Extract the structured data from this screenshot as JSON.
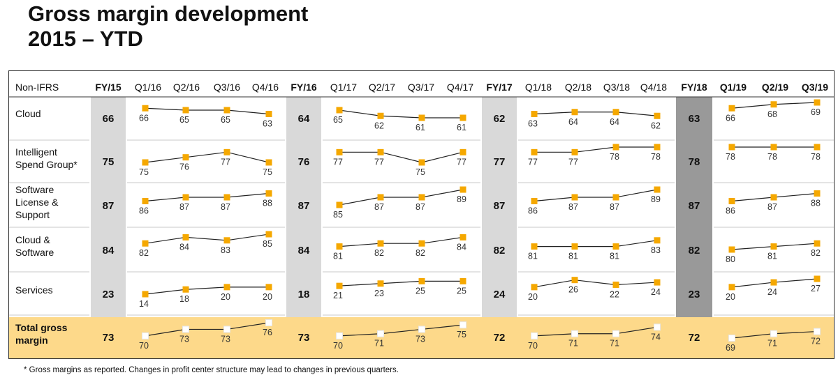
{
  "title_line1": "Gross margin development",
  "title_line2": "2015 – YTD",
  "footnote": "* Gross margins as reported. Changes in profit center structure may lead to changes in previous quarters.",
  "colors": {
    "accent": "#f5a800",
    "fy_band": "#d9d9d9",
    "fy_band_dark": "#999999",
    "total_band": "#fdd98a",
    "total_marker": "#ffffff"
  },
  "chart_data": {
    "type": "table",
    "corner_label": "Non-IFRS",
    "groups": [
      {
        "fy": "FY/15",
        "quarters": [
          "Q1/16",
          "Q2/16",
          "Q3/16",
          "Q4/16"
        ],
        "quarters_bold": false
      },
      {
        "fy": "FY/16",
        "quarters": [
          "Q1/17",
          "Q2/17",
          "Q3/17",
          "Q4/17"
        ],
        "quarters_bold": false
      },
      {
        "fy": "FY/17",
        "quarters": [
          "Q1/18",
          "Q2/18",
          "Q3/18",
          "Q4/18"
        ],
        "quarters_bold": false
      },
      {
        "fy": "FY/18",
        "quarters": [
          "Q1/19",
          "Q2/19",
          "Q3/19"
        ],
        "quarters_bold": true
      }
    ],
    "rows": [
      {
        "name": "Cloud",
        "label_lines": [
          "Cloud"
        ],
        "fy": [
          66,
          64,
          62,
          63
        ],
        "quarters": [
          [
            66,
            65,
            65,
            63
          ],
          [
            65,
            62,
            61,
            61
          ],
          [
            63,
            64,
            64,
            62
          ],
          [
            66,
            68,
            69
          ]
        ]
      },
      {
        "name": "Intelligent Spend Group*",
        "label_lines": [
          "Intelligent",
          "Spend Group*"
        ],
        "fy": [
          75,
          76,
          77,
          78
        ],
        "quarters": [
          [
            75,
            76,
            77,
            75
          ],
          [
            77,
            77,
            75,
            77
          ],
          [
            77,
            77,
            78,
            78
          ],
          [
            78,
            78,
            78
          ]
        ]
      },
      {
        "name": "Software License & Support",
        "label_lines": [
          "Software",
          "License &",
          "Support"
        ],
        "fy": [
          87,
          87,
          87,
          87
        ],
        "quarters": [
          [
            86,
            87,
            87,
            88
          ],
          [
            85,
            87,
            87,
            89
          ],
          [
            86,
            87,
            87,
            89
          ],
          [
            86,
            87,
            88
          ]
        ]
      },
      {
        "name": "Cloud & Software",
        "label_lines": [
          "Cloud &",
          "Software"
        ],
        "fy": [
          84,
          84,
          82,
          82
        ],
        "quarters": [
          [
            82,
            84,
            83,
            85
          ],
          [
            81,
            82,
            82,
            84
          ],
          [
            81,
            81,
            81,
            83
          ],
          [
            80,
            81,
            82
          ]
        ]
      },
      {
        "name": "Services",
        "label_lines": [
          "Services"
        ],
        "fy": [
          23,
          18,
          24,
          23
        ],
        "quarters": [
          [
            14,
            18,
            20,
            20
          ],
          [
            21,
            23,
            25,
            25
          ],
          [
            20,
            26,
            22,
            24
          ],
          [
            20,
            24,
            27
          ]
        ]
      },
      {
        "name": "Total gross margin",
        "label_lines": [
          "Total gross",
          "margin"
        ],
        "fy": [
          73,
          73,
          72,
          72
        ],
        "quarters": [
          [
            70,
            73,
            73,
            76
          ],
          [
            70,
            71,
            73,
            75
          ],
          [
            70,
            71,
            71,
            74
          ],
          [
            69,
            71,
            72
          ]
        ]
      }
    ]
  }
}
